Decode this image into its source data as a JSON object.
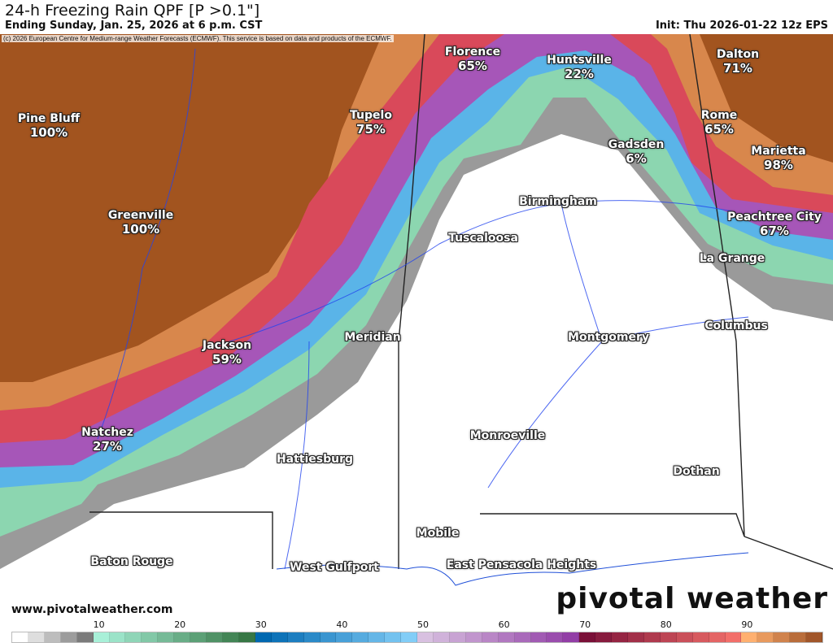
{
  "header": {
    "title": "24-h Freezing Rain QPF [P >0.1\"]",
    "subtitle": "Ending Sunday, Jan. 25, 2026 at 6 p.m. CST",
    "init": "Init: Thu 2026-01-22 12z EPS",
    "copyright": "(c) 2026 European Centre for Medium-range Weather Forecasts (ECMWF). This service is based on data and products of the ECMWF."
  },
  "cities": [
    {
      "name": "Pine Bluff",
      "pct": "100%"
    },
    {
      "name": "Greenville",
      "pct": "100%"
    },
    {
      "name": "Tupelo",
      "pct": "75%"
    },
    {
      "name": "Florence",
      "pct": "65%"
    },
    {
      "name": "Huntsville",
      "pct": "22%"
    },
    {
      "name": "Dalton",
      "pct": "71%"
    },
    {
      "name": "Rome",
      "pct": "65%"
    },
    {
      "name": "Marietta",
      "pct": "98%"
    },
    {
      "name": "Gadsden",
      "pct": "6%"
    },
    {
      "name": "Peachtree City",
      "pct": "67%"
    },
    {
      "name": "Jackson",
      "pct": "59%"
    },
    {
      "name": "Natchez",
      "pct": "27%"
    },
    {
      "name": "Birmingham",
      "pct": ""
    },
    {
      "name": "Tuscaloosa",
      "pct": ""
    },
    {
      "name": "La Grange",
      "pct": ""
    },
    {
      "name": "Columbus",
      "pct": ""
    },
    {
      "name": "Meridian",
      "pct": ""
    },
    {
      "name": "Montgomery",
      "pct": ""
    },
    {
      "name": "Monroeville",
      "pct": ""
    },
    {
      "name": "Hattiesburg",
      "pct": ""
    },
    {
      "name": "Dothan",
      "pct": ""
    },
    {
      "name": "Mobile",
      "pct": ""
    },
    {
      "name": "Baton Rouge",
      "pct": ""
    },
    {
      "name": "West Gulfport",
      "pct": ""
    },
    {
      "name": "East Pensacola Heights",
      "pct": ""
    }
  ],
  "footer": {
    "url": "www.pivotalweather.com",
    "logo": "pivotal weather"
  },
  "colorbar": {
    "unit": "percent probability",
    "range": [
      0,
      100
    ],
    "ticks": [
      "10",
      "20",
      "30",
      "40",
      "50",
      "60",
      "70",
      "80",
      "90"
    ],
    "colors": {
      "0-10": [
        "#ffffff",
        "#5a5a5a"
      ],
      "10-30": [
        "#a8f0d8",
        "#2a6a35"
      ],
      "30-50": [
        "#0068b0",
        "#90d8ff"
      ],
      "50-70": [
        "#d8c0e0",
        "#8a30a0"
      ],
      "70-90": [
        "#7a1038",
        "#ff7a70"
      ],
      "90-100": [
        "#ffb070",
        "#8a4018"
      ]
    }
  }
}
